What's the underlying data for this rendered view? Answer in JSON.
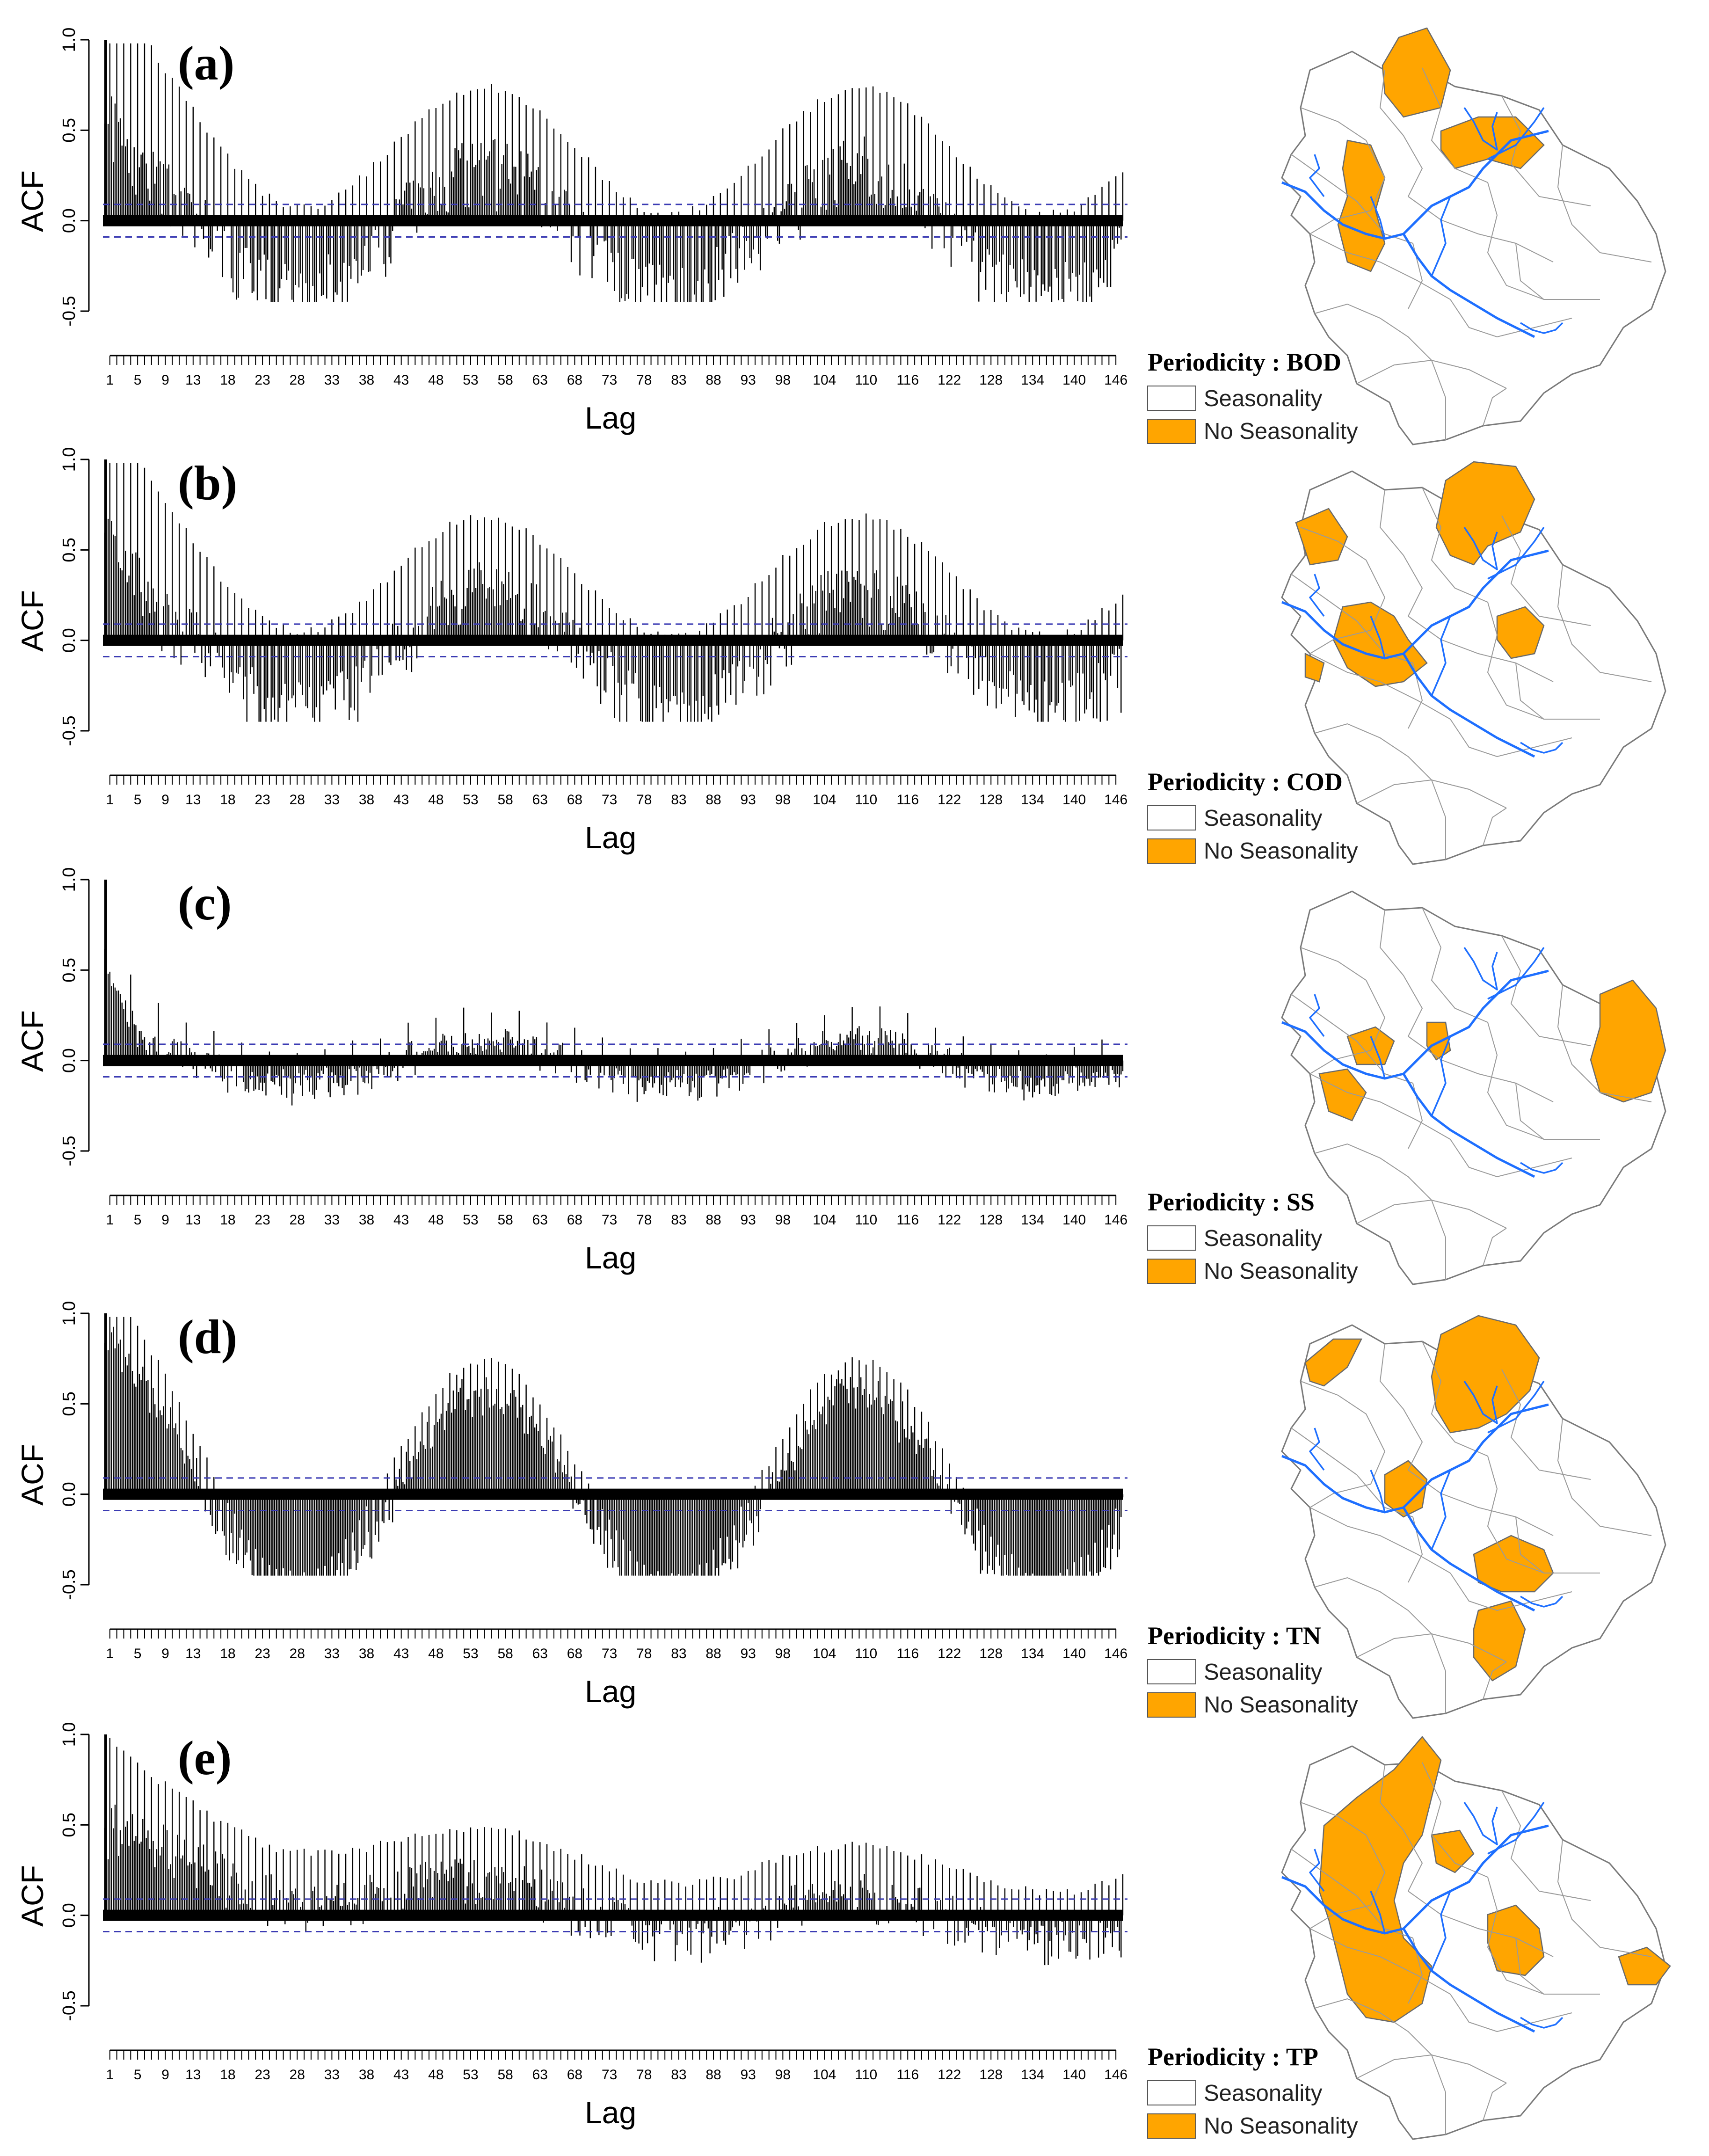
{
  "figure": {
    "background": "#ffffff",
    "bar_color": "#000000",
    "ci_color": "#3b3bb3",
    "fill_color": "#ffa500",
    "river_color": "#1e6fff",
    "map_outline_color": "#7a7a7a"
  },
  "chart_data": [
    {
      "type": "bar",
      "panel": "(a)",
      "ylabel": "ACF",
      "xlabel": "Lag",
      "ylim": [
        -0.5,
        1.0
      ],
      "yticks": [
        "-0.5",
        "0.0",
        "0.5",
        "1.0"
      ],
      "ci": [
        0.09,
        -0.09
      ],
      "xlim": [
        0,
        147
      ],
      "xtick_labels": [
        "1",
        "5",
        "9",
        "13",
        "18",
        "23",
        "28",
        "33",
        "38",
        "43",
        "48",
        "53",
        "58",
        "63",
        "68",
        "73",
        "78",
        "83",
        "88",
        "93",
        "98",
        "104",
        "110",
        "116",
        "122",
        "128",
        "134",
        "140",
        "146"
      ],
      "acf_model": {
        "series": "BOD",
        "sample_interval": 0.25,
        "trend_start": 0.38,
        "trend_tau": 3.5,
        "seasonal_amp": 0.35,
        "seasonal_center": 0.04,
        "season_period": 54,
        "season_phase": 55,
        "spike_boost": 0.45,
        "spike_tau": 12,
        "spike_every": 1,
        "spike_height": 0.32,
        "noise": 0.08
      },
      "legend": {
        "title": "Periodicity : BOD",
        "items": [
          "Seasonality",
          "No Seasonality"
        ]
      },
      "map_regions_no_seasonality": [
        "north-central strip",
        "west-central strip",
        "north-east reservoir"
      ]
    },
    {
      "type": "bar",
      "panel": "(b)",
      "ylabel": "ACF",
      "xlabel": "Lag",
      "ylim": [
        -0.5,
        1.0
      ],
      "yticks": [
        "-0.5",
        "0.0",
        "0.5",
        "1.0"
      ],
      "ci": [
        0.09,
        -0.09
      ],
      "xlim": [
        0,
        147
      ],
      "xtick_labels": [
        "1",
        "5",
        "9",
        "13",
        "18",
        "23",
        "28",
        "33",
        "38",
        "43",
        "48",
        "53",
        "58",
        "63",
        "68",
        "73",
        "78",
        "83",
        "88",
        "93",
        "98",
        "104",
        "110",
        "116",
        "122",
        "128",
        "134",
        "140",
        "146"
      ],
      "acf_model": {
        "series": "COD",
        "sample_interval": 0.25,
        "trend_start": 0.4,
        "trend_tau": 3.5,
        "seasonal_amp": 0.33,
        "seasonal_center": 0.03,
        "season_period": 54,
        "season_phase": 55,
        "spike_boost": 0.45,
        "spike_tau": 10,
        "spike_every": 1,
        "spike_height": 0.3,
        "noise": 0.08
      },
      "legend": {
        "title": "Periodicity : COD",
        "items": [
          "Seasonality",
          "No Seasonality"
        ]
      },
      "map_regions_no_seasonality": [
        "north-east reservoir",
        "north-west",
        "central",
        "east-central",
        "south-west edge"
      ]
    },
    {
      "type": "bar",
      "panel": "(c)",
      "ylabel": "ACF",
      "xlabel": "Lag",
      "ylim": [
        -0.5,
        1.0
      ],
      "yticks": [
        "-0.5",
        "0.0",
        "0.5",
        "1.0"
      ],
      "ci": [
        0.09,
        -0.09
      ],
      "xlim": [
        0,
        147
      ],
      "xtick_labels": [
        "1",
        "5",
        "9",
        "13",
        "18",
        "23",
        "28",
        "33",
        "38",
        "43",
        "48",
        "53",
        "58",
        "63",
        "68",
        "73",
        "78",
        "83",
        "88",
        "93",
        "98",
        "104",
        "110",
        "116",
        "122",
        "128",
        "134",
        "140",
        "146"
      ],
      "acf_model": {
        "series": "SS",
        "sample_interval": 0.25,
        "trend_start": 0.55,
        "trend_tau": 2.5,
        "seasonal_amp": 0.12,
        "seasonal_center": 0.02,
        "season_period": 54,
        "season_phase": 55,
        "spike_boost": 0.3,
        "spike_tau": 4,
        "spike_every": 4,
        "spike_height": 0.12,
        "noise": 0.05
      },
      "legend": {
        "title": "Periodicity : SS",
        "items": [
          "Seasonality",
          "No Seasonality"
        ]
      },
      "map_regions_no_seasonality": [
        "west-central",
        "central pair",
        "east"
      ]
    },
    {
      "type": "bar",
      "panel": "(d)",
      "ylabel": "ACF",
      "xlabel": "Lag",
      "ylim": [
        -0.5,
        1.0
      ],
      "yticks": [
        "-0.5",
        "0.0",
        "0.5",
        "1.0"
      ],
      "ci": [
        0.09,
        -0.09
      ],
      "xlim": [
        0,
        147
      ],
      "xtick_labels": [
        "1",
        "5",
        "9",
        "13",
        "18",
        "23",
        "28",
        "33",
        "38",
        "43",
        "48",
        "53",
        "58",
        "63",
        "68",
        "73",
        "78",
        "83",
        "88",
        "93",
        "98",
        "104",
        "110",
        "116",
        "122",
        "128",
        "134",
        "140",
        "146"
      ],
      "acf_model": {
        "series": "TN",
        "sample_interval": 0.25,
        "trend_start": 0.3,
        "trend_tau": 8,
        "seasonal_amp": 0.6,
        "seasonal_center": 0.0,
        "season_period": 54,
        "season_phase": 55,
        "spike_boost": 0.15,
        "spike_tau": 8,
        "spike_every": 1,
        "spike_height": 0.12,
        "noise": 0.08
      },
      "legend": {
        "title": "Periodicity : TN",
        "items": [
          "Seasonality",
          "No Seasonality"
        ]
      },
      "map_regions_no_seasonality": [
        "north-west",
        "north-east reservoir",
        "central",
        "south reservoir",
        "south"
      ]
    },
    {
      "type": "bar",
      "panel": "(e)",
      "ylabel": "ACF",
      "xlabel": "Lag",
      "ylim": [
        -0.5,
        1.0
      ],
      "yticks": [
        "-0.5",
        "0.0",
        "0.5",
        "1.0"
      ],
      "ci": [
        0.09,
        -0.09
      ],
      "xlim": [
        0,
        147
      ],
      "xtick_labels": [
        "1",
        "5",
        "9",
        "13",
        "18",
        "23",
        "28",
        "33",
        "38",
        "43",
        "48",
        "53",
        "58",
        "63",
        "68",
        "73",
        "78",
        "83",
        "88",
        "93",
        "98",
        "104",
        "110",
        "116",
        "122",
        "128",
        "134",
        "140",
        "146"
      ],
      "acf_model": {
        "series": "TP",
        "sample_interval": 0.25,
        "trend_start": 0.45,
        "trend_tau": 45,
        "seasonal_amp": 0.12,
        "seasonal_center": 0.0,
        "season_period": 54,
        "season_phase": 55,
        "spike_boost": 0.25,
        "spike_tau": 6,
        "spike_every": 1,
        "spike_height": 0.2,
        "noise": 0.08
      },
      "legend": {
        "title": "Periodicity : TP",
        "items": [
          "Seasonality",
          "No Seasonality"
        ]
      },
      "map_regions_no_seasonality": [
        "west (large)",
        "central",
        "south-central",
        "south-east"
      ]
    }
  ]
}
